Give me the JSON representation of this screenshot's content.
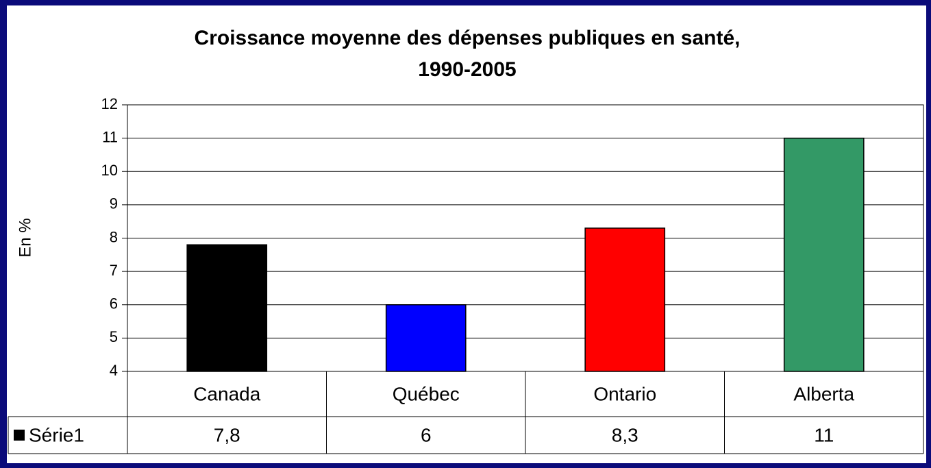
{
  "chart_data": {
    "type": "bar",
    "title": [
      "Croissance moyenne des dépenses publiques en santé,",
      "1990-2005"
    ],
    "ylabel": "En %",
    "categories": [
      "Canada",
      "Québec",
      "Ontario",
      "Alberta"
    ],
    "series": [
      {
        "name": "Série1",
        "color": "#000000",
        "colors": [
          "#000000",
          "#0000ff",
          "#ff0000",
          "#339966"
        ],
        "values": [
          7.8,
          6,
          8.3,
          11
        ],
        "value_labels": [
          "7,8",
          "6",
          "8,3",
          "11"
        ]
      }
    ],
    "ylim": [
      4,
      12
    ],
    "yticks": [
      4,
      5,
      6,
      7,
      8,
      9,
      10,
      11,
      12
    ],
    "grid": true
  }
}
